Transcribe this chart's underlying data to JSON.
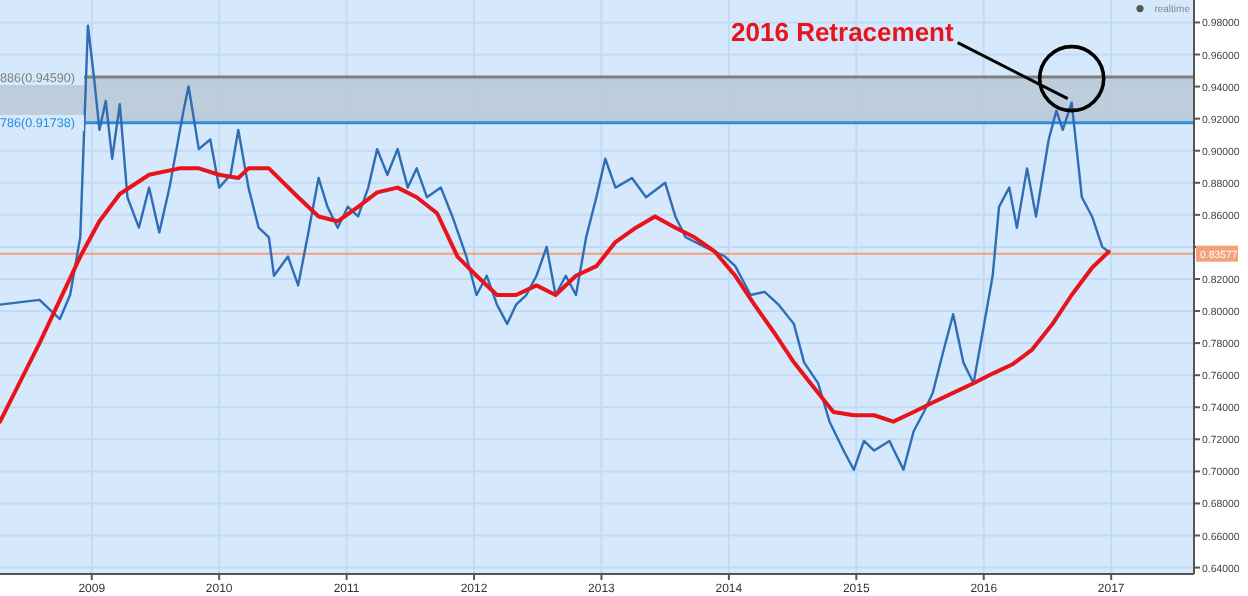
{
  "chart_data": {
    "type": "line",
    "xlim": [
      2008.28,
      2017.65
    ],
    "ylim": [
      0.636,
      0.994
    ],
    "xticks": [
      2009,
      2010,
      2011,
      2012,
      2013,
      2014,
      2015,
      2016,
      2017
    ],
    "yticks": [
      {
        "value": 0.64,
        "label": "0.64000"
      },
      {
        "value": 0.66,
        "label": "0.66000"
      },
      {
        "value": 0.68,
        "label": "0.68000"
      },
      {
        "value": 0.7,
        "label": "0.70000"
      },
      {
        "value": 0.72,
        "label": "0.72000"
      },
      {
        "value": 0.74,
        "label": "0.74000"
      },
      {
        "value": 0.76,
        "label": "0.76000"
      },
      {
        "value": 0.78,
        "label": "0.78000"
      },
      {
        "value": 0.8,
        "label": "0.80000"
      },
      {
        "value": 0.82,
        "label": "0.82000"
      },
      {
        "value": 0.84,
        "label": null
      },
      {
        "value": 0.86,
        "label": "0.86000"
      },
      {
        "value": 0.88,
        "label": "0.88000"
      },
      {
        "value": 0.9,
        "label": "0.90000"
      },
      {
        "value": 0.92,
        "label": "0.92000"
      },
      {
        "value": 0.94,
        "label": "0.94000"
      },
      {
        "value": 0.96,
        "label": "0.96000"
      },
      {
        "value": 0.98,
        "label": "0.98000"
      }
    ],
    "grid": true,
    "series": [
      {
        "color": "#2f6db5",
        "x": [
          2008.28,
          2008.59,
          2008.75,
          2008.83,
          2008.91,
          2008.97,
          2009.02,
          2009.06,
          2009.11,
          2009.16,
          2009.22,
          2009.28,
          2009.37,
          2009.45,
          2009.53,
          2009.61,
          2009.72,
          2009.76,
          2009.84,
          2009.93,
          2010.0,
          2010.09,
          2010.15,
          2010.23,
          2010.31,
          2010.39,
          2010.43,
          2010.54,
          2010.62,
          2010.7,
          2010.78,
          2010.85,
          2010.93,
          2011.01,
          2011.09,
          2011.17,
          2011.24,
          2011.32,
          2011.4,
          2011.48,
          2011.55,
          2011.63,
          2011.74,
          2011.83,
          2011.94,
          2012.02,
          2012.1,
          2012.18,
          2012.26,
          2012.33,
          2012.41,
          2012.49,
          2012.57,
          2012.64,
          2012.72,
          2012.8,
          2012.88,
          2012.96,
          2013.03,
          2013.11,
          2013.24,
          2013.35,
          2013.5,
          2013.58,
          2013.66,
          2013.81,
          2013.97,
          2014.05,
          2014.17,
          2014.28,
          2014.39,
          2014.51,
          2014.59,
          2014.7,
          2014.79,
          2014.9,
          2014.98,
          2015.06,
          2015.14,
          2015.26,
          2015.37,
          2015.45,
          2015.53,
          2015.6,
          2015.68,
          2015.76,
          2015.84,
          2015.92,
          2015.99,
          2016.07,
          2016.12,
          2016.2,
          2016.26,
          2016.34,
          2016.41,
          2016.51,
          2016.57,
          2016.62,
          2016.69,
          2016.77,
          2016.85,
          2016.93,
          2016.98
        ],
        "values": [
          0.804,
          0.807,
          0.795,
          0.81,
          0.846,
          0.978,
          0.944,
          0.913,
          0.931,
          0.895,
          0.929,
          0.871,
          0.852,
          0.877,
          0.849,
          0.877,
          0.925,
          0.94,
          0.901,
          0.907,
          0.877,
          0.885,
          0.913,
          0.877,
          0.852,
          0.846,
          0.822,
          0.834,
          0.816,
          0.849,
          0.883,
          0.865,
          0.852,
          0.865,
          0.859,
          0.877,
          0.901,
          0.885,
          0.901,
          0.877,
          0.889,
          0.871,
          0.877,
          0.859,
          0.834,
          0.81,
          0.822,
          0.804,
          0.792,
          0.804,
          0.81,
          0.822,
          0.84,
          0.81,
          0.822,
          0.81,
          0.846,
          0.871,
          0.895,
          0.877,
          0.883,
          0.871,
          0.88,
          0.859,
          0.846,
          0.84,
          0.834,
          0.828,
          0.81,
          0.812,
          0.804,
          0.792,
          0.768,
          0.755,
          0.731,
          0.713,
          0.701,
          0.719,
          0.713,
          0.719,
          0.701,
          0.725,
          0.737,
          0.749,
          0.774,
          0.798,
          0.768,
          0.755,
          0.786,
          0.822,
          0.865,
          0.877,
          0.852,
          0.889,
          0.859,
          0.907,
          0.925,
          0.913,
          0.93,
          0.871,
          0.859,
          0.84,
          0.837
        ]
      },
      {
        "color": "#e8141c",
        "x": [
          2008.28,
          2008.59,
          2008.91,
          2009.06,
          2009.22,
          2009.45,
          2009.69,
          2009.84,
          2010.0,
          2010.15,
          2010.23,
          2010.39,
          2010.62,
          2010.78,
          2010.93,
          2011.09,
          2011.24,
          2011.4,
          2011.55,
          2011.71,
          2011.87,
          2012.02,
          2012.18,
          2012.33,
          2012.49,
          2012.64,
          2012.8,
          2012.96,
          2013.11,
          2013.27,
          2013.42,
          2013.58,
          2013.73,
          2013.89,
          2014.05,
          2014.2,
          2014.36,
          2014.51,
          2014.67,
          2014.82,
          2014.98,
          2015.14,
          2015.29,
          2015.45,
          2015.6,
          2015.76,
          2015.92,
          2016.07,
          2016.23,
          2016.38,
          2016.54,
          2016.69,
          2016.85,
          2016.98
        ],
        "values": [
          0.731,
          0.78,
          0.834,
          0.856,
          0.873,
          0.885,
          0.889,
          0.889,
          0.885,
          0.883,
          0.889,
          0.889,
          0.871,
          0.859,
          0.856,
          0.865,
          0.874,
          0.877,
          0.871,
          0.861,
          0.834,
          0.822,
          0.81,
          0.81,
          0.816,
          0.81,
          0.822,
          0.828,
          0.843,
          0.852,
          0.859,
          0.852,
          0.846,
          0.837,
          0.822,
          0.804,
          0.786,
          0.768,
          0.752,
          0.737,
          0.735,
          0.735,
          0.731,
          0.737,
          0.743,
          0.749,
          0.755,
          0.761,
          0.767,
          0.776,
          0.792,
          0.81,
          0.827,
          0.837
        ]
      }
    ],
    "bands": [
      {
        "axis": "y",
        "from": 0.91738,
        "to": 0.9459,
        "color": "#b9c8d6"
      }
    ],
    "ref_lines": [
      {
        "axis": "y",
        "value": 0.9459,
        "label": "886(0.94590)",
        "color": "#7f7f7f"
      },
      {
        "axis": "y",
        "value": 0.91738,
        "label": "786(0.91738)",
        "color": "#2a8fd8"
      },
      {
        "axis": "y",
        "value": 0.83577,
        "label": "0.83577",
        "color": "#f4a07a"
      }
    ],
    "annotations": [
      {
        "text": "2016 Retracement",
        "x": 2016.69,
        "y": 0.93
      },
      "realtime"
    ]
  }
}
